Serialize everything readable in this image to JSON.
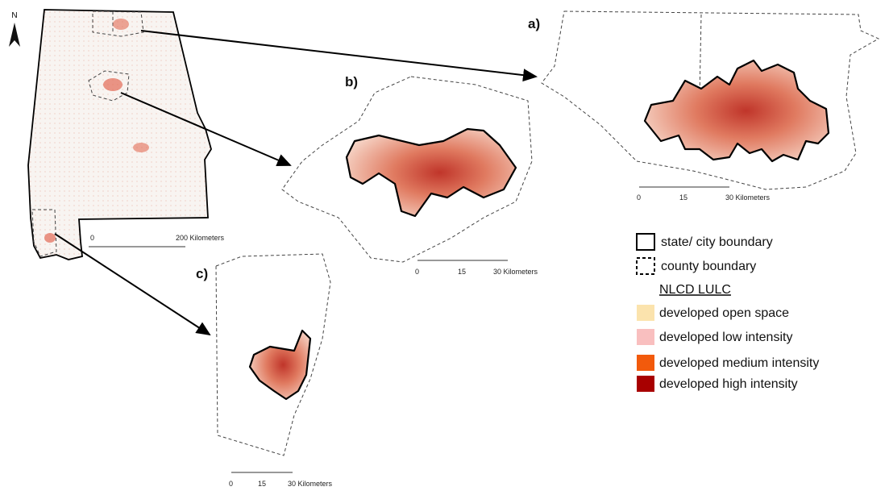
{
  "north_arrow": "N",
  "state_map": {
    "scale_bar": [
      "0",
      "200 Kilometers"
    ]
  },
  "panels": [
    {
      "label": "a)",
      "scale_bar": [
        "0",
        "15",
        "30 Kilometers"
      ]
    },
    {
      "label": "b)",
      "scale_bar": [
        "0",
        "15",
        "30 Kilometers"
      ]
    },
    {
      "label": "c)",
      "scale_bar": [
        "0",
        "15",
        "30 Kilometers"
      ]
    }
  ],
  "legend": {
    "boundaries": [
      "state/ city boundary",
      "county boundary"
    ],
    "title": "NLCD LULC",
    "classes": [
      {
        "label": "developed open space",
        "color": "#fbe3ad"
      },
      {
        "label": "developed low intensity",
        "color": "#f9bfbf"
      },
      {
        "label": "developed medium intensity",
        "color": "#f25a0c"
      },
      {
        "label": "developed high intensity",
        "color": "#a80000"
      }
    ]
  }
}
